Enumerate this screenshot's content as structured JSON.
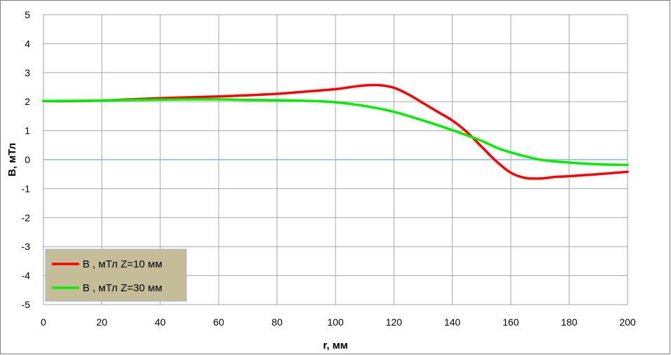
{
  "chart_data": {
    "type": "line",
    "title": "",
    "xlabel": "r, мм",
    "ylabel": "B, мТл",
    "xlim": [
      0,
      200
    ],
    "ylim": [
      -5,
      5
    ],
    "xticks": [
      "0",
      "20",
      "40",
      "60",
      "80",
      "100",
      "120",
      "140",
      "160",
      "180",
      "200"
    ],
    "yticks": [
      "5",
      "4",
      "3",
      "2",
      "1",
      "0",
      "-1",
      "-2",
      "-3",
      "-4",
      "-5"
    ],
    "grid": true,
    "legend_position": "bottom-left",
    "series": [
      {
        "name": "B , мТл Z=10 мм",
        "color": "#ff0000",
        "x": [
          0,
          10,
          20,
          30,
          40,
          50,
          60,
          70,
          80,
          90,
          100,
          105,
          110,
          115,
          120,
          125,
          130,
          135,
          140,
          145,
          150,
          155,
          160,
          165,
          170,
          175,
          180,
          190,
          200
        ],
        "y": [
          2.02,
          2.02,
          2.04,
          2.08,
          2.12,
          2.15,
          2.18,
          2.22,
          2.27,
          2.35,
          2.43,
          2.5,
          2.56,
          2.57,
          2.48,
          2.25,
          1.95,
          1.65,
          1.35,
          0.95,
          0.45,
          -0.05,
          -0.45,
          -0.63,
          -0.65,
          -0.6,
          -0.57,
          -0.5,
          -0.42
        ]
      },
      {
        "name": "B , мТл Z=30 мм",
        "color": "#00ee00",
        "x": [
          0,
          10,
          20,
          30,
          40,
          50,
          60,
          70,
          80,
          90,
          100,
          110,
          120,
          130,
          140,
          150,
          155,
          160,
          170,
          180,
          190,
          200
        ],
        "y": [
          2.02,
          2.03,
          2.04,
          2.06,
          2.07,
          2.08,
          2.08,
          2.06,
          2.05,
          2.03,
          1.98,
          1.85,
          1.65,
          1.35,
          1.02,
          0.65,
          0.42,
          0.25,
          0.0,
          -0.1,
          -0.16,
          -0.18
        ]
      }
    ]
  }
}
